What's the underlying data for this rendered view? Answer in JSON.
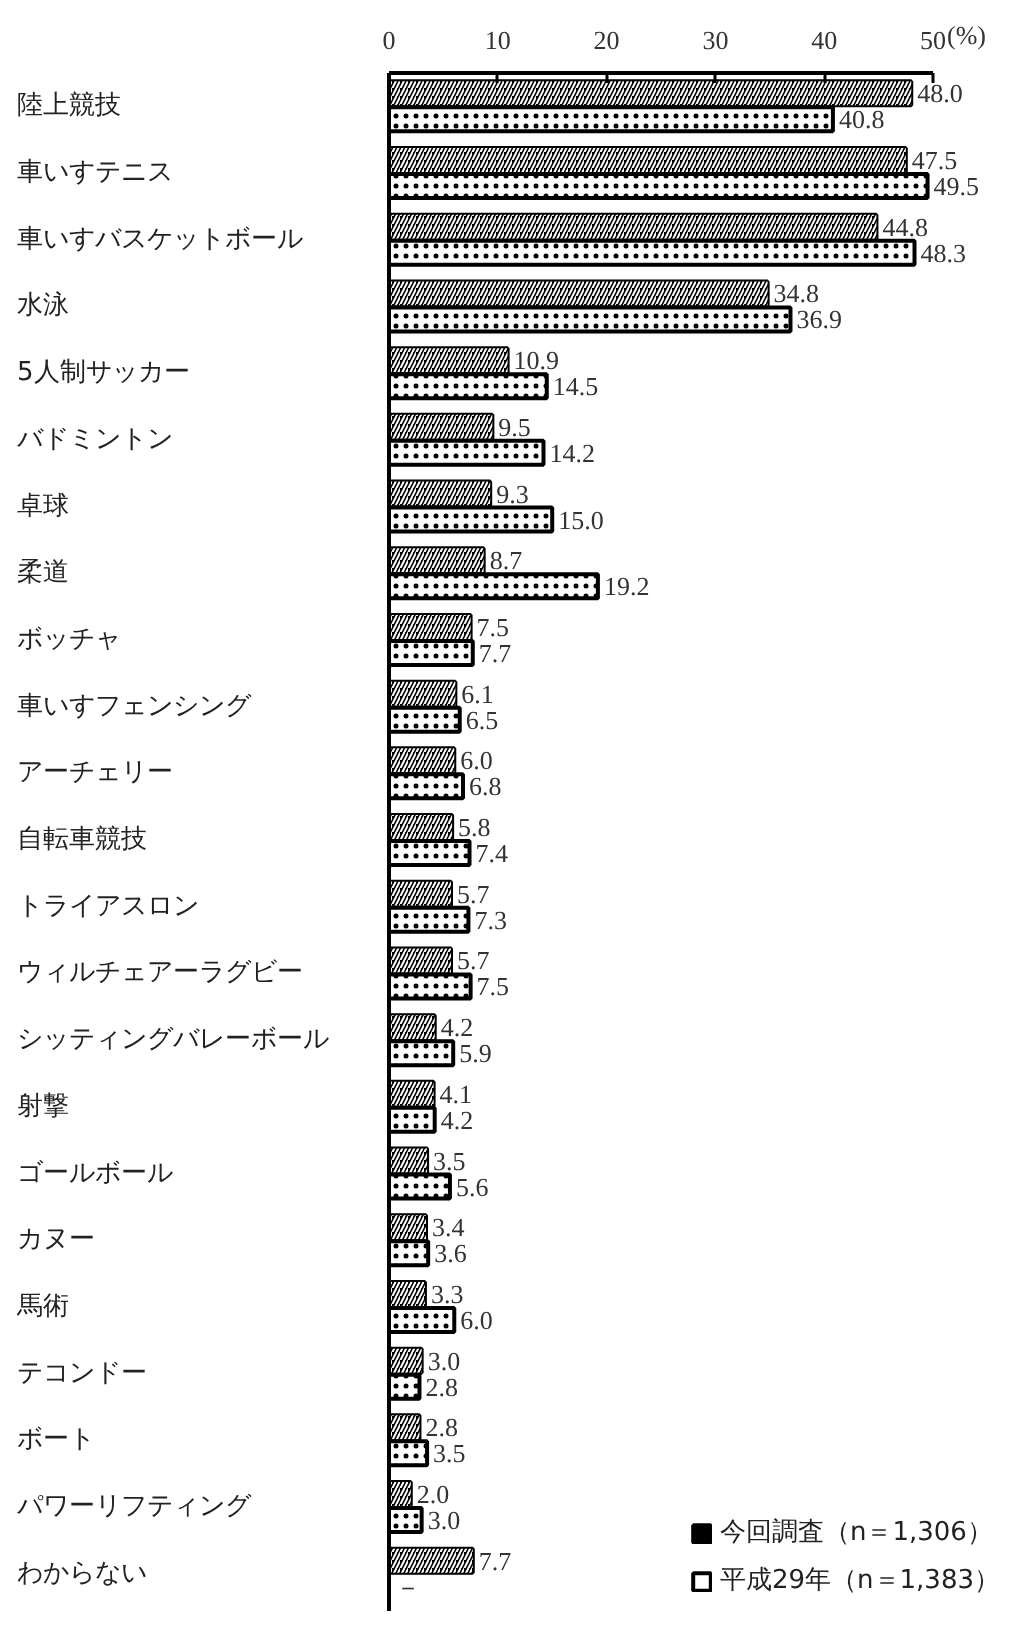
{
  "chart_data": {
    "type": "bar",
    "orientation": "horizontal",
    "xlabel": "(%)",
    "legend": "bottom right",
    "categories": [
      "陸上競技",
      "車いすテニス",
      "車いすバスケットボール",
      "水泳",
      "5人制サッカー",
      "バドミントン",
      "卓球",
      "柔道",
      "ボッチャ",
      "車いすフェンシング",
      "アーチェリー",
      "自転車競技",
      "トライアスロン",
      "ウィルチェアーラグビー",
      "シッティングバレーボール",
      "射撃",
      "ゴールボール",
      "カヌー",
      "馬術",
      "テコンドー",
      "ボート",
      "パワーリフティング",
      "わからない"
    ],
    "series": [
      {
        "name": "今回調査（n＝1,306）",
        "color": "#000000",
        "values": [
          48.0,
          47.5,
          44.8,
          34.8,
          10.9,
          9.5,
          9.3,
          8.7,
          7.5,
          6.1,
          6.0,
          5.8,
          5.7,
          5.7,
          4.2,
          4.1,
          3.5,
          3.4,
          3.3,
          3.0,
          2.8,
          2.0,
          7.7
        ],
        "value_labels": [
          "48.0",
          "47.5",
          "44.8",
          "34.8",
          "10.9",
          "9.5",
          "9.3",
          "8.7",
          "7.5",
          "6.1",
          "6.0",
          "5.8",
          "5.7",
          "5.7",
          "4.2",
          "4.1",
          "3.5",
          "3.4",
          "3.3",
          "3.0",
          "2.8",
          "2.0",
          "7.7"
        ]
      },
      {
        "name": "平成29年（n＝1,383）",
        "color": "#000000",
        "values": [
          40.8,
          49.5,
          48.3,
          36.9,
          14.5,
          14.2,
          15.0,
          19.2,
          7.7,
          6.5,
          6.8,
          7.4,
          7.3,
          7.5,
          5.9,
          4.2,
          5.6,
          3.6,
          6.0,
          2.8,
          3.5,
          3.0,
          null
        ],
        "value_labels": [
          "40.8",
          "49.5",
          "48.3",
          "36.9",
          "14.5",
          "14.2",
          "15.0",
          "19.2",
          "7.7",
          "6.5",
          "6.8",
          "7.4",
          "7.3",
          "7.5",
          "5.9",
          "4.2",
          "5.6",
          "3.6",
          "6.0",
          "2.8",
          "3.5",
          "3.0",
          "－"
        ]
      }
    ],
    "xlim": [
      0,
      50
    ],
    "xticks": [
      0,
      10,
      20,
      30,
      40,
      50
    ]
  }
}
